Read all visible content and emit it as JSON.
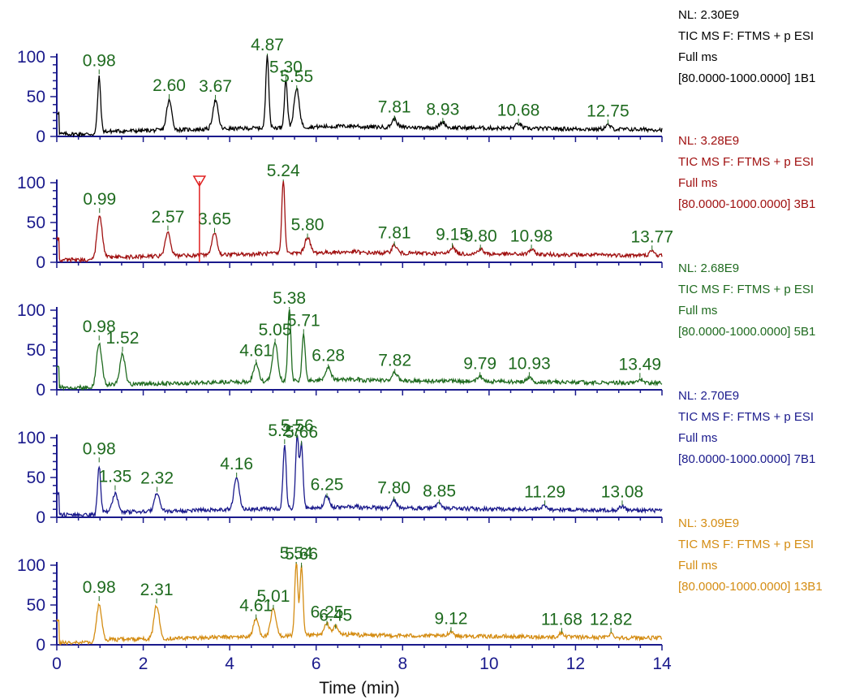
{
  "chart_data": {
    "type": "line",
    "xlabel": "Time (min)",
    "xlim": [
      0,
      14
    ],
    "x_ticks": [
      0,
      2,
      4,
      6,
      8,
      10,
      12,
      14
    ],
    "y_ticks": [
      0,
      50,
      100
    ],
    "ylim": [
      0,
      100
    ],
    "axis_color": "#1a1a8c",
    "peak_label_color": "#1f6b1f",
    "panels": [
      {
        "sample": "1B1",
        "color": "#000000",
        "info": [
          "NL: 2.30E9",
          "TIC  MS  F: FTMS + p ESI",
          "Full ms",
          "[80.0000-1000.0000] 1B1"
        ],
        "peaks": [
          {
            "rt": 0.98,
            "label": "0.98",
            "height": 76
          },
          {
            "rt": 2.6,
            "label": "2.60",
            "height": 45
          },
          {
            "rt": 3.67,
            "label": "3.67",
            "height": 44
          },
          {
            "rt": 4.87,
            "label": "4.87",
            "height": 100
          },
          {
            "rt": 5.3,
            "label": "5.30",
            "height": 68
          },
          {
            "rt": 5.55,
            "label": "5.55",
            "height": 56
          },
          {
            "rt": 7.81,
            "label": "7.81",
            "height": 18
          },
          {
            "rt": 8.93,
            "label": "8.93",
            "height": 15
          },
          {
            "rt": 10.68,
            "label": "10.68",
            "height": 14
          },
          {
            "rt": 12.75,
            "label": "12.75",
            "height": 13
          }
        ]
      },
      {
        "sample": "3B1",
        "color": "#a01010",
        "info": [
          "NL: 3.28E9",
          "TIC  MS  F: FTMS + p ESI",
          "Full ms",
          "[80.0000-1000.0000] 3B1"
        ],
        "peaks": [
          {
            "rt": 0.99,
            "label": "0.99",
            "height": 60
          },
          {
            "rt": 2.57,
            "label": "2.57",
            "height": 38
          },
          {
            "rt": 3.65,
            "label": "3.65",
            "height": 35
          },
          {
            "rt": 5.24,
            "label": "5.24",
            "height": 100
          },
          {
            "rt": 5.8,
            "label": "5.80",
            "height": 28
          },
          {
            "rt": 7.81,
            "label": "7.81",
            "height": 18
          },
          {
            "rt": 9.15,
            "label": "9.15",
            "height": 16
          },
          {
            "rt": 9.8,
            "label": "9.80",
            "height": 14
          },
          {
            "rt": 10.98,
            "label": "10.98",
            "height": 14
          },
          {
            "rt": 13.77,
            "label": "13.77",
            "height": 13
          }
        ]
      },
      {
        "sample": "5B1",
        "color": "#1f6b1f",
        "info": [
          "NL: 2.68E9",
          "TIC  MS  F: FTMS + p ESI",
          "Full ms",
          "[80.0000-1000.0000] 5B1"
        ],
        "peaks": [
          {
            "rt": 0.98,
            "label": "0.98",
            "height": 60
          },
          {
            "rt": 1.52,
            "label": "1.52",
            "height": 46
          },
          {
            "rt": 4.61,
            "label": "4.61",
            "height": 30
          },
          {
            "rt": 5.05,
            "label": "5.05",
            "height": 56
          },
          {
            "rt": 5.38,
            "label": "5.38",
            "height": 100
          },
          {
            "rt": 5.71,
            "label": "5.71",
            "height": 68
          },
          {
            "rt": 6.28,
            "label": "6.28",
            "height": 24
          },
          {
            "rt": 7.82,
            "label": "7.82",
            "height": 18
          },
          {
            "rt": 9.79,
            "label": "9.79",
            "height": 14
          },
          {
            "rt": 10.93,
            "label": "10.93",
            "height": 14
          },
          {
            "rt": 13.49,
            "label": "13.49",
            "height": 13
          }
        ]
      },
      {
        "sample": "7B1",
        "color": "#1a1a8c",
        "info": [
          "NL: 2.70E9",
          "TIC  MS  F: FTMS + p ESI",
          "Full ms",
          "[80.0000-1000.0000] 7B1"
        ],
        "peaks": [
          {
            "rt": 0.98,
            "label": "0.98",
            "height": 67
          },
          {
            "rt": 1.35,
            "label": "1.35",
            "height": 32
          },
          {
            "rt": 2.32,
            "label": "2.32",
            "height": 30
          },
          {
            "rt": 4.16,
            "label": "4.16",
            "height": 48
          },
          {
            "rt": 5.27,
            "label": "5.27",
            "height": 90
          },
          {
            "rt": 5.56,
            "label": "5.56",
            "height": 100
          },
          {
            "rt": 5.66,
            "label": "5.66",
            "height": 88
          },
          {
            "rt": 6.25,
            "label": "6.25",
            "height": 22
          },
          {
            "rt": 7.8,
            "label": "7.80",
            "height": 18
          },
          {
            "rt": 8.85,
            "label": "8.85",
            "height": 14
          },
          {
            "rt": 11.29,
            "label": "11.29",
            "height": 13
          },
          {
            "rt": 13.08,
            "label": "13.08",
            "height": 13
          }
        ]
      },
      {
        "sample": "13B1",
        "color": "#d48c12",
        "info": [
          "NL: 3.09E9",
          "TIC  MS  F: FTMS + p ESI",
          "Full ms",
          "[80.0000-1000.0000] 13B1"
        ],
        "peaks": [
          {
            "rt": 0.98,
            "label": "0.98",
            "height": 53
          },
          {
            "rt": 2.31,
            "label": "2.31",
            "height": 50
          },
          {
            "rt": 4.61,
            "label": "4.61",
            "height": 30
          },
          {
            "rt": 5.01,
            "label": "5.01",
            "height": 42
          },
          {
            "rt": 5.54,
            "label": "5.54",
            "height": 100
          },
          {
            "rt": 5.66,
            "label": "5.66",
            "height": 95
          },
          {
            "rt": 6.25,
            "label": "6.25",
            "height": 22
          },
          {
            "rt": 6.45,
            "label": "6.45",
            "height": 18
          },
          {
            "rt": 9.12,
            "label": "9.12",
            "height": 14
          },
          {
            "rt": 11.68,
            "label": "11.68",
            "height": 13
          },
          {
            "rt": 12.82,
            "label": "12.82",
            "height": 13
          }
        ]
      }
    ],
    "marker": {
      "panel": 1,
      "rt": 3.3
    }
  }
}
